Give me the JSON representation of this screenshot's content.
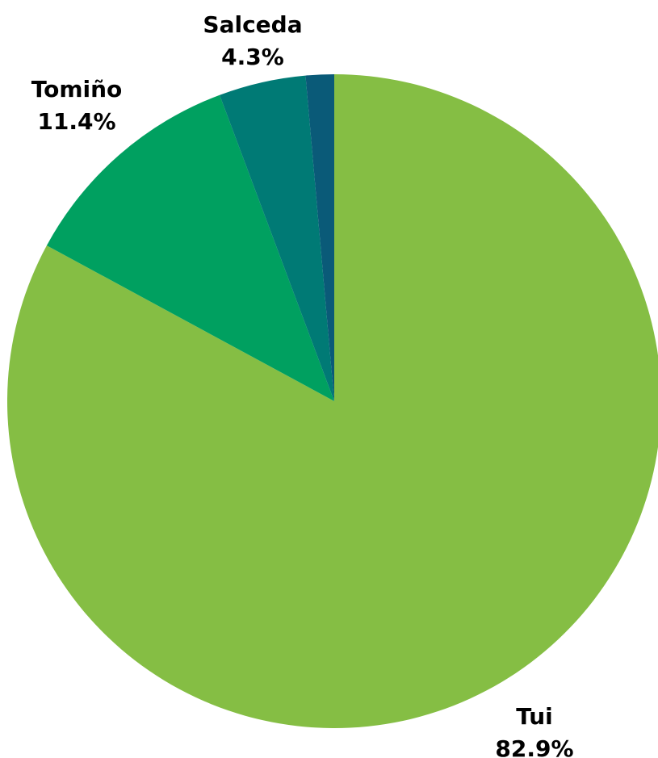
{
  "chart_data": {
    "type": "pie",
    "title": "",
    "slices": [
      {
        "name": "Tui",
        "value": 82.9,
        "label": "82.9%",
        "color": "#85BE44"
      },
      {
        "name": "Tomiño",
        "value": 11.4,
        "label": "11.4%",
        "color": "#00A060"
      },
      {
        "name": "Salceda",
        "value": 4.3,
        "label": "4.3%",
        "color": "#007A75"
      },
      {
        "name": "",
        "value": 1.4,
        "label": "",
        "color": "#0A5A78"
      }
    ],
    "direction": "clockwise",
    "start": "top",
    "legend": "none",
    "grid": false
  }
}
